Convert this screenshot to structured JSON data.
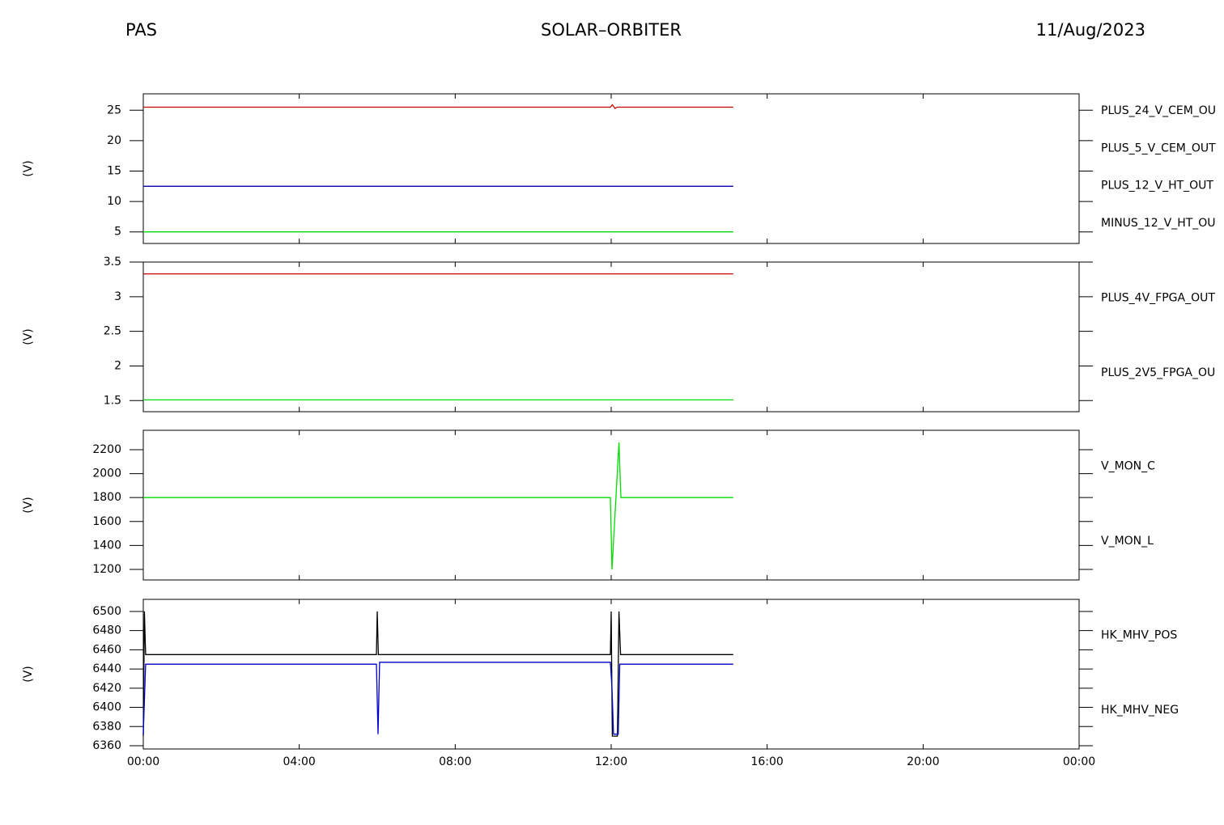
{
  "header": {
    "left": "PAS",
    "center": "SOLAR–ORBITER",
    "right": "11/Aug/2023"
  },
  "chart_data": [
    {
      "type": "line",
      "y_label": "(V)",
      "ylim": [
        3.1,
        27.7
      ],
      "yticks": [
        5,
        10,
        15,
        20,
        25
      ],
      "series": [
        {
          "name": "PLUS_24_V_CEM_OU",
          "color": "#cc0000",
          "x": [
            0,
            11.98,
            12.03,
            12.1,
            12.15,
            15.13
          ],
          "values": [
            25.5,
            25.5,
            25.9,
            25.3,
            25.5,
            25.5
          ]
        },
        {
          "name": "PLUS_5_V_CEM_OUT",
          "color": "#00dd00",
          "x": [
            0,
            15.13
          ],
          "values": [
            5.0,
            5.0
          ]
        },
        {
          "name": "PLUS_12_V_HT_OUT",
          "color": "#0000aa",
          "x": [
            0,
            15.13
          ],
          "values": [
            12.5,
            12.5
          ]
        },
        {
          "name": "MINUS_12_V_HT_OU",
          "color": "#000000",
          "x": [
            0,
            15.13
          ],
          "values": [
            null,
            null
          ]
        }
      ]
    },
    {
      "type": "line",
      "y_label": "(V)",
      "ylim": [
        1.34,
        3.5
      ],
      "yticks": [
        1.5,
        2.0,
        2.5,
        3.0,
        3.5
      ],
      "series": [
        {
          "name": "PLUS_4V_FPGA_OUT",
          "color": "#cc0000",
          "x": [
            0,
            15.13
          ],
          "values": [
            3.33,
            3.33
          ]
        },
        {
          "name": "PLUS_2V5_FPGA_OU",
          "color": "#00dd00",
          "x": [
            0,
            15.13
          ],
          "values": [
            1.51,
            1.51
          ]
        }
      ]
    },
    {
      "type": "line",
      "y_label": "(V)",
      "ylim": [
        1112,
        2362
      ],
      "yticks": [
        1200,
        1400,
        1600,
        1800,
        2000,
        2200
      ],
      "series": [
        {
          "name": "V_MON_C",
          "color": "#cc0000",
          "x": [
            0,
            15.13
          ],
          "values": [
            null,
            null
          ]
        },
        {
          "name": "V_MON_L",
          "color": "#00dd00",
          "x": [
            0,
            11.98,
            12.02,
            12.2,
            12.25,
            15.13
          ],
          "values": [
            1800,
            1800,
            1200,
            2260,
            1800,
            1800
          ]
        }
      ]
    },
    {
      "type": "line",
      "y_label": "(V)",
      "ylim": [
        6356.6,
        6512.6
      ],
      "yticks": [
        6360,
        6380,
        6400,
        6420,
        6440,
        6460,
        6480,
        6500
      ],
      "xlim": [
        0,
        24
      ],
      "xticks": [
        {
          "value": 0,
          "label": "00:00"
        },
        {
          "value": 4,
          "label": "04:00"
        },
        {
          "value": 8,
          "label": "08:00"
        },
        {
          "value": 12,
          "label": "12:00"
        },
        {
          "value": 16,
          "label": "16:00"
        },
        {
          "value": 20,
          "label": "20:00"
        },
        {
          "value": 24,
          "label": "00:00"
        }
      ],
      "series": [
        {
          "name": "HK_MHV_POS",
          "color": "#000000",
          "x": [
            0,
            0.03,
            0.06,
            5.98,
            6.0,
            6.03,
            11.98,
            12.0,
            12.03,
            12.16,
            12.2,
            12.24,
            15.13
          ],
          "values": [
            6370,
            6500,
            6455,
            6455,
            6500,
            6455,
            6455,
            6500,
            6370,
            6370,
            6500,
            6455,
            6455
          ]
        },
        {
          "name": "HK_MHV_NEG",
          "color": "#0000cc",
          "x": [
            0,
            0.06,
            5.98,
            6.02,
            6.06,
            11.98,
            12.02,
            12.06,
            12.18,
            12.22,
            15.13
          ],
          "values": [
            6372,
            6445,
            6445,
            6372,
            6447,
            6447,
            6420,
            6372,
            6372,
            6445,
            6445
          ]
        }
      ]
    }
  ]
}
